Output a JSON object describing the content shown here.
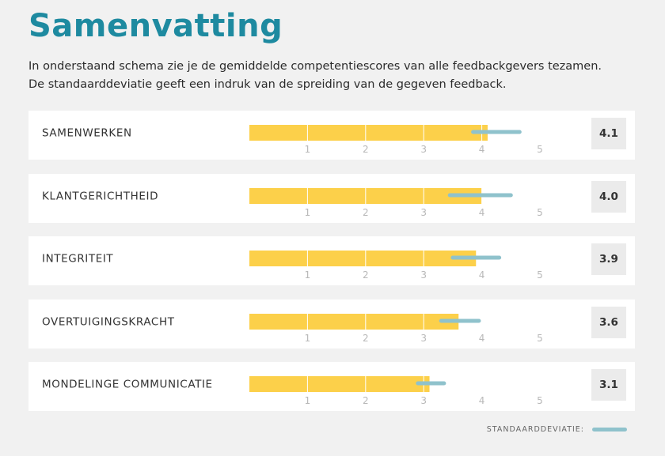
{
  "header": {
    "title": "Samenvatting",
    "intro_line1": "In onderstaand schema zie je de gemiddelde competentiescores van alle feedbackgevers tezamen.",
    "intro_line2": "De standaarddeviatie geeft een indruk van de spreiding van de gegeven feedback."
  },
  "colors": {
    "bar": "#fcd04a",
    "std_line": "#8fc2cc",
    "tick_label": "#b8b8b8",
    "title": "#1e8aa0"
  },
  "chart_data": {
    "type": "bar",
    "orientation": "horizontal",
    "xlim": [
      0,
      5
    ],
    "ticks": [
      1,
      2,
      3,
      4,
      5
    ],
    "grid": true,
    "categories": [
      "SAMENWERKEN",
      "KLANTGERICHTHEID",
      "INTEGRITEIT",
      "OVERTUIGINGSKRACHT",
      "MONDELINGE COMMUNICATIE"
    ],
    "values": [
      4.1,
      4.0,
      3.9,
      3.6,
      3.1
    ],
    "display_values": [
      "4.1",
      "4.0",
      "3.9",
      "3.6",
      "3.1"
    ],
    "std_dev": [
      {
        "from": 3.85,
        "to": 4.65
      },
      {
        "from": 3.45,
        "to": 4.5
      },
      {
        "from": 3.5,
        "to": 4.3
      },
      {
        "from": 3.3,
        "to": 3.95
      },
      {
        "from": 2.9,
        "to": 3.35
      }
    ]
  },
  "legend": {
    "label": "STANDAARDDEVIATIE:"
  }
}
